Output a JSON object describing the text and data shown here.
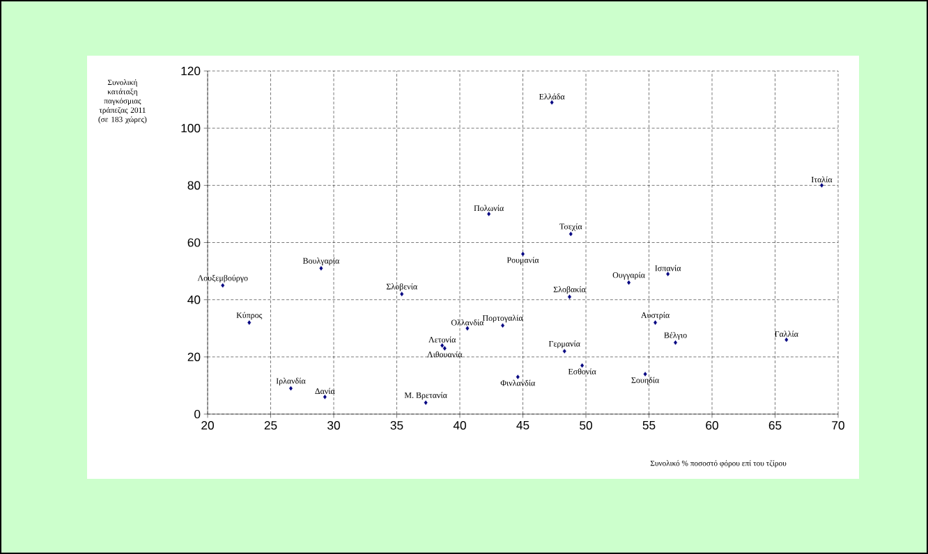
{
  "chart_data": {
    "type": "scatter",
    "xlabel": "Συνολικό % ποσοστό φόρου επί του τζίρου",
    "ylabel": "Συνολική κατάταξη παγκόσμιας τράπεζας 2011 (σε 183 χώρες)",
    "x": [
      21.2,
      23.3,
      29.0,
      26.6,
      29.3,
      35.4,
      37.3,
      38.6,
      38.8,
      40.6,
      42.3,
      47.3,
      45.0,
      43.4,
      44.6,
      48.8,
      48.7,
      48.3,
      49.7,
      53.4,
      56.5,
      55.5,
      57.1,
      54.7,
      65.9,
      68.7
    ],
    "values": [
      45,
      32,
      51,
      9,
      6,
      42,
      4,
      24,
      23,
      30,
      70,
      109,
      56,
      31,
      13,
      63,
      41,
      22,
      17,
      46,
      49,
      32,
      25,
      14,
      26,
      80
    ],
    "color": "#000080",
    "marker": "diamond",
    "grid": true,
    "xlim": [
      20,
      70
    ],
    "xticks": [
      20,
      25,
      30,
      35,
      40,
      45,
      50,
      55,
      60,
      65,
      70
    ],
    "ylim": [
      0,
      120
    ],
    "yticks": [
      0,
      20,
      40,
      60,
      80,
      100,
      120
    ],
    "annotations": [
      {
        "text": "Λουξεμβούργο",
        "x": 21.2,
        "y": 45
      },
      {
        "text": "Κύπρος",
        "x": 23.3,
        "y": 32
      },
      {
        "text": "Βουλγαρία",
        "x": 29.0,
        "y": 51
      },
      {
        "text": "Ιρλανδία",
        "x": 26.6,
        "y": 9
      },
      {
        "text": "Δανία",
        "x": 29.3,
        "y": 6
      },
      {
        "text": "Σλοβενία",
        "x": 35.4,
        "y": 42
      },
      {
        "text": "Μ. Βρετανία",
        "x": 37.3,
        "y": 4
      },
      {
        "text": "Λετονία",
        "x": 38.6,
        "y": 24
      },
      {
        "text": "Λιθουανία",
        "x": 38.8,
        "y": 23
      },
      {
        "text": "Ολλανδία",
        "x": 40.6,
        "y": 30
      },
      {
        "text": "Πολωνία",
        "x": 42.3,
        "y": 70
      },
      {
        "text": "Ελλάδα",
        "x": 47.3,
        "y": 109
      },
      {
        "text": "Ρουμανία",
        "x": 45.0,
        "y": 56
      },
      {
        "text": "Πορτογαλία",
        "x": 43.4,
        "y": 31
      },
      {
        "text": "Φινλανδία",
        "x": 44.6,
        "y": 13
      },
      {
        "text": "Τσεχία",
        "x": 48.8,
        "y": 63
      },
      {
        "text": "Σλοβακία",
        "x": 48.7,
        "y": 41
      },
      {
        "text": "Γερμανία",
        "x": 48.3,
        "y": 22
      },
      {
        "text": "Εσθονία",
        "x": 49.7,
        "y": 17
      },
      {
        "text": "Ουγγαρία",
        "x": 53.4,
        "y": 46
      },
      {
        "text": "Ισπανία",
        "x": 56.5,
        "y": 49
      },
      {
        "text": "Αυστρία",
        "x": 55.5,
        "y": 32
      },
      {
        "text": "Βέλγιο",
        "x": 57.1,
        "y": 25
      },
      {
        "text": "Σουηδία",
        "x": 54.7,
        "y": 14
      },
      {
        "text": "Γαλλία",
        "x": 65.9,
        "y": 26
      },
      {
        "text": "Ιταλία",
        "x": 68.7,
        "y": 80
      }
    ]
  }
}
